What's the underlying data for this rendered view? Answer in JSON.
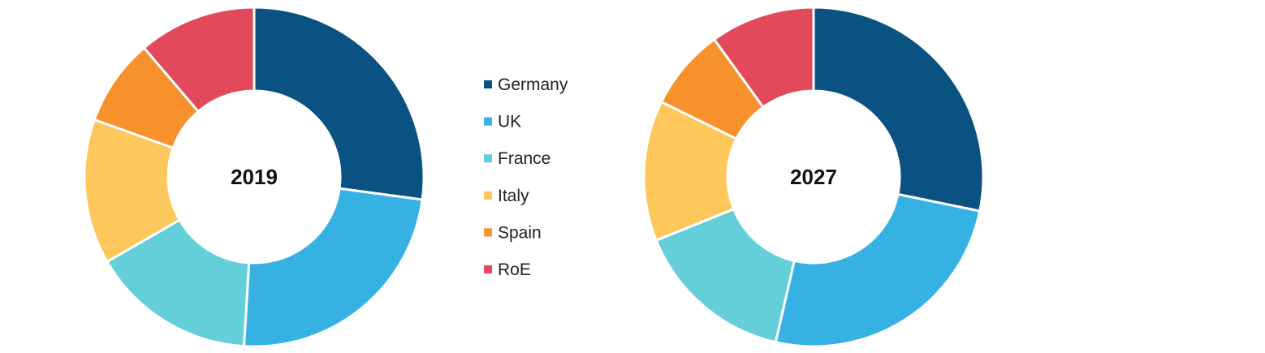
{
  "chart_data": [
    {
      "type": "pie",
      "center_label": "2019",
      "categories": [
        "Germany",
        "UK",
        "France",
        "Italy",
        "Spain",
        "RoE"
      ],
      "values": [
        28.5,
        25.0,
        16.5,
        14.5,
        8.7,
        11.8
      ]
    },
    {
      "type": "pie",
      "center_label": "2027",
      "categories": [
        "Germany",
        "UK",
        "France",
        "Italy",
        "Spain",
        "RoE"
      ],
      "values": [
        29.5,
        26.5,
        16.0,
        14.0,
        8.1,
        10.4
      ]
    }
  ],
  "legend": {
    "placement": "center",
    "items": [
      {
        "label": "Germany",
        "color": "#0a5282"
      },
      {
        "label": "UK",
        "color": "#35b1e3"
      },
      {
        "label": "France",
        "color": "#65cfd9"
      },
      {
        "label": "Italy",
        "color": "#fdc75c"
      },
      {
        "label": "Spain",
        "color": "#f7912b"
      },
      {
        "label": "RoE",
        "color": "#e24a5b"
      }
    ]
  }
}
